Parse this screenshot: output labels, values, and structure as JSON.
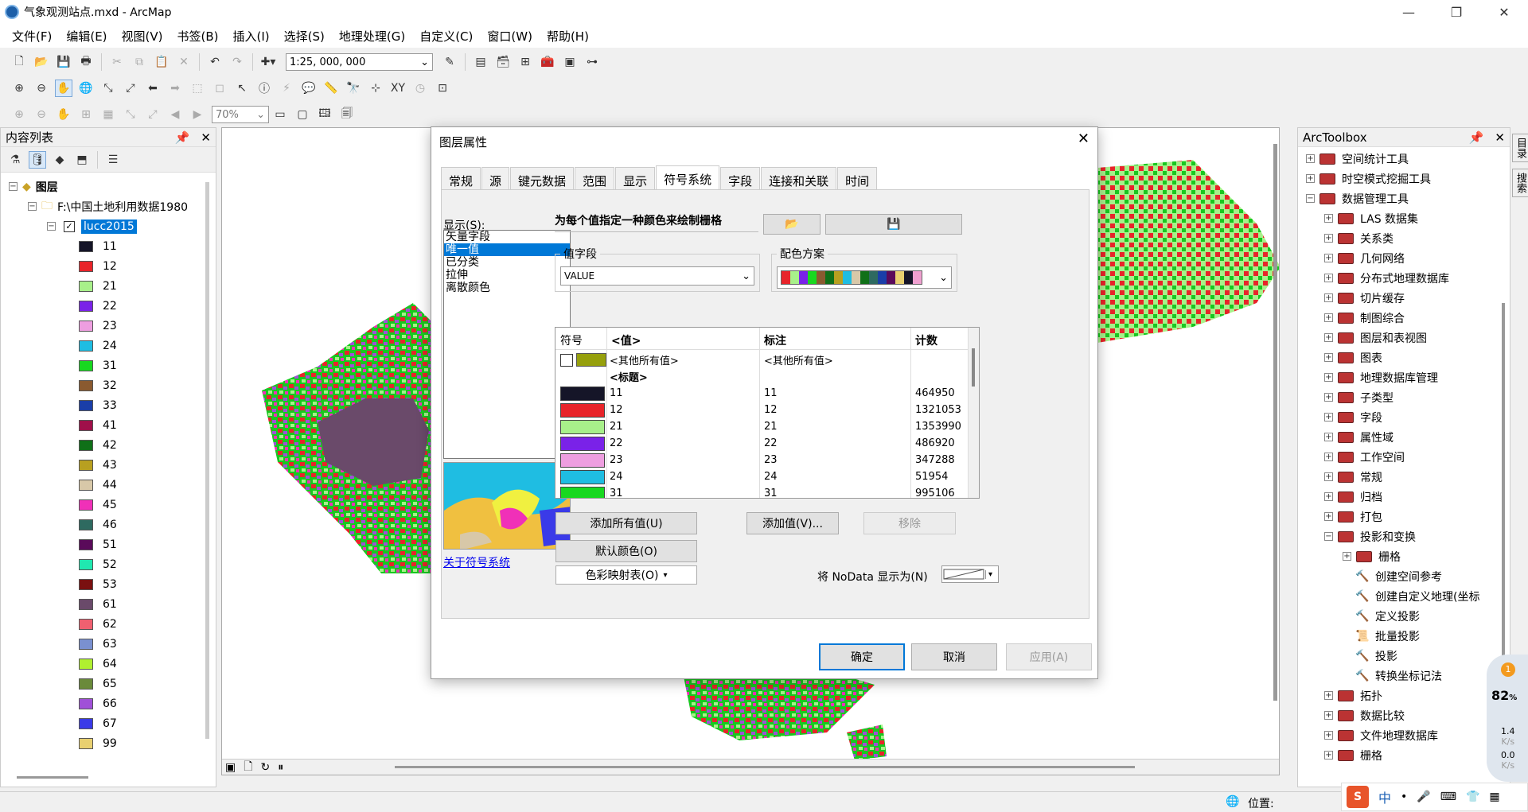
{
  "window": {
    "title": "气象观测站点.mxd - ArcMap",
    "min": "—",
    "max": "❐",
    "close": "✕"
  },
  "menu": [
    "文件(F)",
    "编辑(E)",
    "视图(V)",
    "书签(B)",
    "插入(I)",
    "选择(S)",
    "地理处理(G)",
    "自定义(C)",
    "窗口(W)",
    "帮助(H)"
  ],
  "toolbar": {
    "scale": "1:25, 000, 000",
    "zoom_percent": "70%"
  },
  "toc": {
    "title": "内容列表",
    "layers_label": "图层",
    "folder": "F:\\中国土地利用数据1980",
    "layer": "lucc2015",
    "legend": [
      {
        "label": "11",
        "color": "#151528"
      },
      {
        "label": "12",
        "color": "#e8242a"
      },
      {
        "label": "21",
        "color": "#a8f08a"
      },
      {
        "label": "22",
        "color": "#7a22e8"
      },
      {
        "label": "23",
        "color": "#ee9ee0"
      },
      {
        "label": "24",
        "color": "#1fbde2"
      },
      {
        "label": "31",
        "color": "#18d820"
      },
      {
        "label": "32",
        "color": "#8a5a30"
      },
      {
        "label": "33",
        "color": "#1a3ea8"
      },
      {
        "label": "41",
        "color": "#a0104a"
      },
      {
        "label": "42",
        "color": "#107018"
      },
      {
        "label": "43",
        "color": "#b8a020"
      },
      {
        "label": "44",
        "color": "#d8c8a8"
      },
      {
        "label": "45",
        "color": "#f030b8"
      },
      {
        "label": "46",
        "color": "#2e6a60"
      },
      {
        "label": "51",
        "color": "#5a0a5a"
      },
      {
        "label": "52",
        "color": "#20e8b0"
      },
      {
        "label": "53",
        "color": "#7a1010"
      },
      {
        "label": "61",
        "color": "#6a4a6a"
      },
      {
        "label": "62",
        "color": "#f06070"
      },
      {
        "label": "63",
        "color": "#7a90d0"
      },
      {
        "label": "64",
        "color": "#b0f030"
      },
      {
        "label": "65",
        "color": "#6a8a3a"
      },
      {
        "label": "66",
        "color": "#a050d8"
      },
      {
        "label": "67",
        "color": "#3a3ae8"
      },
      {
        "label": "99",
        "color": "#e8d070"
      }
    ]
  },
  "toolbox": {
    "title": "ArcToolbox",
    "items": [
      {
        "label": "空间统计工具",
        "level": 0,
        "exp": "+",
        "icon": "toolbox"
      },
      {
        "label": "时空模式挖掘工具",
        "level": 0,
        "exp": "+",
        "icon": "toolbox"
      },
      {
        "label": "数据管理工具",
        "level": 0,
        "exp": "−",
        "icon": "toolbox"
      },
      {
        "label": "LAS 数据集",
        "level": 1,
        "exp": "+",
        "icon": "toolset"
      },
      {
        "label": "关系类",
        "level": 1,
        "exp": "+",
        "icon": "toolset"
      },
      {
        "label": "几何网络",
        "level": 1,
        "exp": "+",
        "icon": "toolset"
      },
      {
        "label": "分布式地理数据库",
        "level": 1,
        "exp": "+",
        "icon": "toolset"
      },
      {
        "label": "切片缓存",
        "level": 1,
        "exp": "+",
        "icon": "toolset"
      },
      {
        "label": "制图综合",
        "level": 1,
        "exp": "+",
        "icon": "toolset"
      },
      {
        "label": "图层和表视图",
        "level": 1,
        "exp": "+",
        "icon": "toolset"
      },
      {
        "label": "图表",
        "level": 1,
        "exp": "+",
        "icon": "toolset"
      },
      {
        "label": "地理数据库管理",
        "level": 1,
        "exp": "+",
        "icon": "toolset"
      },
      {
        "label": "子类型",
        "level": 1,
        "exp": "+",
        "icon": "toolset"
      },
      {
        "label": "字段",
        "level": 1,
        "exp": "+",
        "icon": "toolset"
      },
      {
        "label": "属性域",
        "level": 1,
        "exp": "+",
        "icon": "toolset"
      },
      {
        "label": "工作空间",
        "level": 1,
        "exp": "+",
        "icon": "toolset"
      },
      {
        "label": "常规",
        "level": 1,
        "exp": "+",
        "icon": "toolset"
      },
      {
        "label": "归档",
        "level": 1,
        "exp": "+",
        "icon": "toolset"
      },
      {
        "label": "打包",
        "level": 1,
        "exp": "+",
        "icon": "toolset"
      },
      {
        "label": "投影和变换",
        "level": 1,
        "exp": "−",
        "icon": "toolset"
      },
      {
        "label": "栅格",
        "level": 2,
        "exp": "+",
        "icon": "toolset"
      },
      {
        "label": "创建空间参考",
        "level": 2,
        "exp": "",
        "icon": "hammer"
      },
      {
        "label": "创建自定义地理(坐标",
        "level": 2,
        "exp": "",
        "icon": "hammer"
      },
      {
        "label": "定义投影",
        "level": 2,
        "exp": "",
        "icon": "hammer"
      },
      {
        "label": "批量投影",
        "level": 2,
        "exp": "",
        "icon": "script"
      },
      {
        "label": "投影",
        "level": 2,
        "exp": "",
        "icon": "hammer"
      },
      {
        "label": "转换坐标记法",
        "level": 2,
        "exp": "",
        "icon": "hammer"
      },
      {
        "label": "拓扑",
        "level": 1,
        "exp": "+",
        "icon": "toolset"
      },
      {
        "label": "数据比较",
        "level": 1,
        "exp": "+",
        "icon": "toolset"
      },
      {
        "label": "文件地理数据库",
        "level": 1,
        "exp": "+",
        "icon": "toolset"
      },
      {
        "label": "栅格",
        "level": 1,
        "exp": "+",
        "icon": "toolset"
      }
    ]
  },
  "right_strip": [
    "目录",
    "搜索"
  ],
  "status": {
    "position_label": "位置:"
  },
  "tray": {
    "percent": "82",
    "percent_unit": "%",
    "up": "1.4",
    "up_unit": "K/s",
    "down": "0.0",
    "down_unit": "K/s",
    "notif": "1",
    "ime": "中"
  },
  "dialog": {
    "title": "图层属性",
    "tabs": [
      "常规",
      "源",
      "键元数据",
      "范围",
      "显示",
      "符号系统",
      "字段",
      "连接和关联",
      "时间"
    ],
    "active_tab": "符号系统",
    "show_label": "显示(S):",
    "show_items": [
      "矢量字段",
      "唯一值",
      "已分类",
      "拉伸",
      "离散颜色"
    ],
    "selected_show": "唯一值",
    "desc": "为每个值指定一种颜色来绘制栅格",
    "value_field_label": "值字段",
    "value_field": "VALUE",
    "color_scheme_label": "配色方案",
    "scheme_colors": [
      "#e8242a",
      "#a8f08a",
      "#7a22e8",
      "#18d820",
      "#8a5a30",
      "#107018",
      "#b8a020",
      "#1fbde2",
      "#d8c8a8",
      "#107018",
      "#2e6a60",
      "#1a3ea8",
      "#5a0a5a",
      "#e8d070",
      "#151528",
      "#f0a0d0"
    ],
    "grid": {
      "headers": [
        "符号",
        "<值>",
        "标注",
        "计数"
      ],
      "others_value": "<其他所有值>",
      "others_label": "<其他所有值>",
      "others_color": "#96a00c",
      "heading": "<标题>",
      "rows": [
        {
          "value": "11",
          "label": "11",
          "count": "464950",
          "color": "#151528"
        },
        {
          "value": "12",
          "label": "12",
          "count": "1321053",
          "color": "#e8242a"
        },
        {
          "value": "21",
          "label": "21",
          "count": "1353990",
          "color": "#a8f08a"
        },
        {
          "value": "22",
          "label": "22",
          "count": "486920",
          "color": "#7a22e8"
        },
        {
          "value": "23",
          "label": "23",
          "count": "347288",
          "color": "#ee9ee0"
        },
        {
          "value": "24",
          "label": "24",
          "count": "51954",
          "color": "#1fbde2"
        },
        {
          "value": "31",
          "label": "31",
          "count": "995106",
          "color": "#18d820"
        }
      ]
    },
    "buttons": {
      "add_all": "添加所有值(U)",
      "add_values": "添加值(V)...",
      "remove": "移除",
      "default_colors": "默认颜色(O)",
      "colormap": "色彩映射表(O)",
      "ok": "确定",
      "cancel": "取消",
      "apply": "应用(A)"
    },
    "nodata_label": "将 NoData 显示为(N)",
    "about_link": "关于符号系统"
  }
}
